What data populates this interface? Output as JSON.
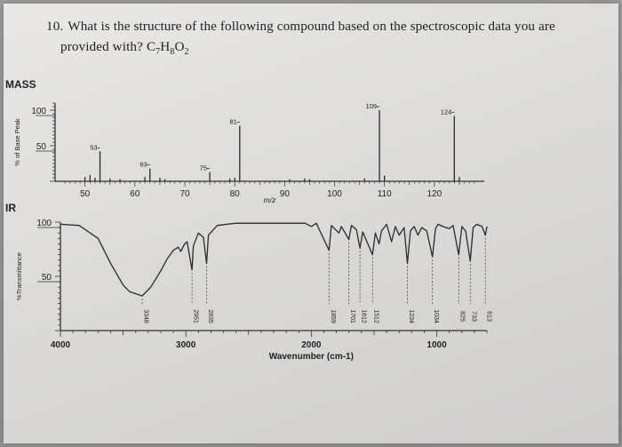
{
  "question": {
    "number": "10.",
    "text_line1": "What is the structure of the following compound based on the spectroscopic data you are",
    "text_line2": "provided with?",
    "formula": "C7H8O2"
  },
  "chart_data": [
    {
      "type": "bar",
      "section_label": "MASS",
      "ylabel": "% of Base Peak",
      "xlabel": "m/z",
      "xlim": [
        44,
        130
      ],
      "ylim": [
        0,
        110
      ],
      "x_ticks": [
        "50",
        "60",
        "70",
        "80",
        "90",
        "100",
        "110",
        "120"
      ],
      "y_ticks": [
        "100",
        "50"
      ],
      "peaks": [
        {
          "x": 53,
          "y": 42,
          "label": "53"
        },
        {
          "x": 63,
          "y": 18,
          "label": "63"
        },
        {
          "x": 75,
          "y": 13,
          "label": "75"
        },
        {
          "x": 81,
          "y": 78,
          "label": "81"
        },
        {
          "x": 109,
          "y": 100,
          "label": "109"
        },
        {
          "x": 124,
          "y": 92,
          "label": "124"
        },
        {
          "x": 50,
          "y": 6,
          "label": ""
        },
        {
          "x": 51,
          "y": 9,
          "label": ""
        },
        {
          "x": 52,
          "y": 5,
          "label": ""
        },
        {
          "x": 55,
          "y": 4,
          "label": ""
        },
        {
          "x": 57,
          "y": 3,
          "label": ""
        },
        {
          "x": 62,
          "y": 6,
          "label": ""
        },
        {
          "x": 65,
          "y": 5,
          "label": ""
        },
        {
          "x": 66,
          "y": 3,
          "label": ""
        },
        {
          "x": 79,
          "y": 4,
          "label": ""
        },
        {
          "x": 80,
          "y": 5,
          "label": ""
        },
        {
          "x": 91,
          "y": 3,
          "label": ""
        },
        {
          "x": 94,
          "y": 4,
          "label": ""
        },
        {
          "x": 95,
          "y": 3,
          "label": ""
        },
        {
          "x": 106,
          "y": 4,
          "label": ""
        },
        {
          "x": 110,
          "y": 8,
          "label": ""
        },
        {
          "x": 125,
          "y": 6,
          "label": ""
        }
      ]
    },
    {
      "type": "line",
      "section_label": "IR",
      "ylabel": "%Transmittance",
      "xlabel": "Wavenumber (cm-1)",
      "xlim": [
        4000,
        600
      ],
      "ylim": [
        0,
        100
      ],
      "x_ticks": [
        "4000",
        "3000",
        "2000",
        "1000"
      ],
      "y_ticks": [
        "100",
        "50"
      ],
      "spectrum": [
        [
          4000,
          98
        ],
        [
          3850,
          97
        ],
        [
          3700,
          85
        ],
        [
          3600,
          62
        ],
        [
          3500,
          42
        ],
        [
          3450,
          36
        ],
        [
          3400,
          34
        ],
        [
          3348,
          32
        ],
        [
          3280,
          40
        ],
        [
          3200,
          55
        ],
        [
          3150,
          66
        ],
        [
          3100,
          74
        ],
        [
          3060,
          77
        ],
        [
          3040,
          73
        ],
        [
          3010,
          80
        ],
        [
          2990,
          82
        ],
        [
          2960,
          62
        ],
        [
          2951,
          56
        ],
        [
          2940,
          78
        ],
        [
          2900,
          90
        ],
        [
          2860,
          86
        ],
        [
          2835,
          62
        ],
        [
          2820,
          88
        ],
        [
          2750,
          97
        ],
        [
          2600,
          99
        ],
        [
          2400,
          99
        ],
        [
          2200,
          99
        ],
        [
          2050,
          99
        ],
        [
          2000,
          96
        ],
        [
          1960,
          99
        ],
        [
          1859,
          74
        ],
        [
          1840,
          97
        ],
        [
          1780,
          90
        ],
        [
          1760,
          96
        ],
        [
          1701,
          84
        ],
        [
          1680,
          97
        ],
        [
          1640,
          93
        ],
        [
          1612,
          76
        ],
        [
          1590,
          91
        ],
        [
          1512,
          70
        ],
        [
          1490,
          90
        ],
        [
          1460,
          80
        ],
        [
          1440,
          92
        ],
        [
          1400,
          98
        ],
        [
          1360,
          82
        ],
        [
          1330,
          96
        ],
        [
          1300,
          88
        ],
        [
          1260,
          95
        ],
        [
          1234,
          62
        ],
        [
          1210,
          92
        ],
        [
          1180,
          96
        ],
        [
          1150,
          88
        ],
        [
          1120,
          95
        ],
        [
          1080,
          92
        ],
        [
          1034,
          68
        ],
        [
          1010,
          94
        ],
        [
          990,
          98
        ],
        [
          950,
          96
        ],
        [
          900,
          94
        ],
        [
          870,
          97
        ],
        [
          825,
          70
        ],
        [
          800,
          96
        ],
        [
          770,
          92
        ],
        [
          733,
          64
        ],
        [
          710,
          95
        ],
        [
          680,
          98
        ],
        [
          640,
          96
        ],
        [
          613,
          88
        ],
        [
          600,
          96
        ]
      ],
      "band_labels": [
        {
          "x": 3348,
          "label": "3348"
        },
        {
          "x": 2951,
          "label": "2951"
        },
        {
          "x": 2835,
          "label": "2835"
        },
        {
          "x": 1859,
          "label": "1859"
        },
        {
          "x": 1701,
          "label": "1701"
        },
        {
          "x": 1612,
          "label": "1612"
        },
        {
          "x": 1512,
          "label": "1512"
        },
        {
          "x": 1234,
          "label": "1234"
        },
        {
          "x": 1034,
          "label": "1034"
        },
        {
          "x": 825,
          "label": "825"
        },
        {
          "x": 733,
          "label": "733"
        },
        {
          "x": 613,
          "label": "613"
        }
      ]
    }
  ]
}
